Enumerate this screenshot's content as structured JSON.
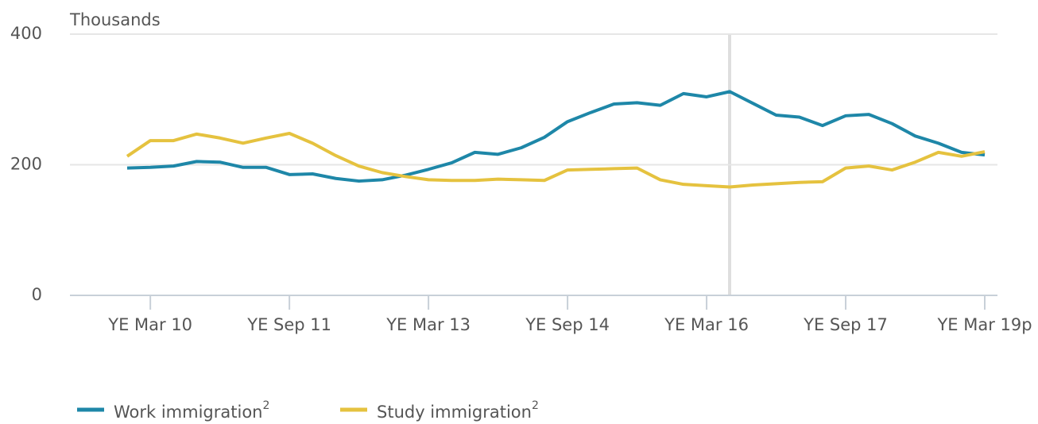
{
  "chart_data": {
    "type": "line",
    "y_label": "Thousands",
    "categories": [
      null,
      "YE Mar 10",
      null,
      null,
      null,
      null,
      null,
      "YE Sep 11",
      null,
      null,
      null,
      null,
      null,
      "YE Mar 13",
      null,
      null,
      null,
      null,
      null,
      "YE Sep 14",
      null,
      null,
      null,
      null,
      null,
      "YE Mar 16",
      null,
      null,
      null,
      null,
      null,
      "YE Sep 17",
      null,
      null,
      null,
      null,
      null,
      "YE Mar 19p"
    ],
    "series": [
      {
        "name": "Work immigration",
        "footnote": "2",
        "color": "#1e87a8",
        "values": [
          195,
          196,
          198,
          205,
          204,
          196,
          196,
          185,
          186,
          179,
          175,
          177,
          184,
          193,
          203,
          219,
          216,
          226,
          242,
          266,
          280,
          293,
          295,
          291,
          309,
          304,
          312,
          294,
          276,
          273,
          260,
          275,
          277,
          263,
          244,
          233,
          219,
          215
        ]
      },
      {
        "name": "Study immigration",
        "footnote": "2",
        "color": "#e5c23f",
        "values": [
          213,
          237,
          237,
          247,
          241,
          233,
          241,
          248,
          233,
          214,
          198,
          188,
          182,
          177,
          176,
          176,
          178,
          177,
          176,
          192,
          193,
          194,
          195,
          177,
          170,
          168,
          166,
          169,
          171,
          173,
          174,
          195,
          198,
          192,
          204,
          219,
          213,
          220
        ]
      }
    ],
    "ylim": [
      0,
      400
    ],
    "yticks": [
      0,
      200,
      400
    ],
    "grid": true
  }
}
